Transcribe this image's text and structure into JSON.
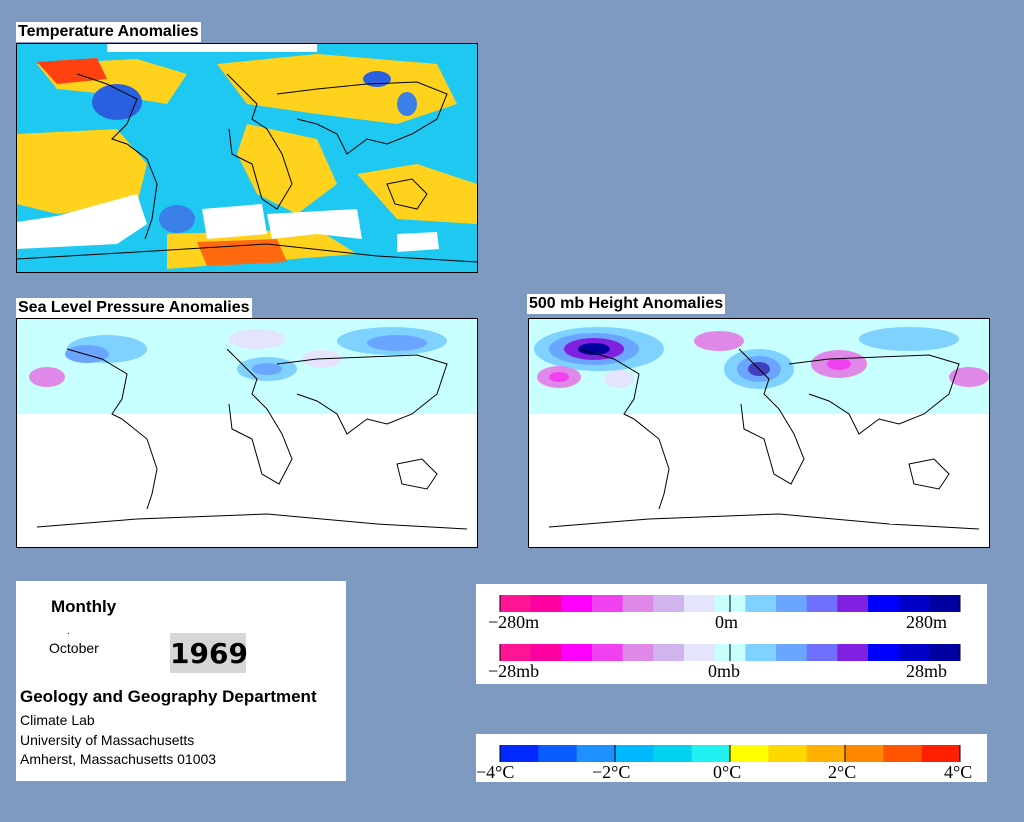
{
  "panels": {
    "temperature": {
      "title": "Temperature Anomalies"
    },
    "slp": {
      "title": "Sea Level Pressure Anomalies"
    },
    "height500": {
      "title": "500 mb Height Anomalies"
    }
  },
  "info": {
    "period": "Monthly",
    "marker": ".",
    "month": "October",
    "year": "1969",
    "department": "Geology and Geography Department",
    "address_lines": [
      "Climate Lab",
      "University of Massachusetts",
      "Amherst, Massachusetts 01003"
    ]
  },
  "legends": {
    "height": {
      "labels": [
        "−280m",
        "0m",
        "280m"
      ],
      "colors": [
        "#ff1493",
        "#ff00a0",
        "#ff00ff",
        "#f040f0",
        "#e088e8",
        "#cfb4ee",
        "#e4e4ff",
        "#c8ffff",
        "#7fd2ff",
        "#6aa6ff",
        "#7070ff",
        "#8020e0",
        "#0000ff",
        "#0000c8",
        "#0000a0"
      ]
    },
    "pressure": {
      "labels": [
        "−28mb",
        "0mb",
        "28mb"
      ],
      "colors": [
        "#ff1493",
        "#ff00a0",
        "#ff00ff",
        "#f040f0",
        "#e088e8",
        "#cfb4ee",
        "#e4e4ff",
        "#c8ffff",
        "#7fd2ff",
        "#6aa6ff",
        "#7070ff",
        "#8020e0",
        "#0000ff",
        "#0000c8",
        "#0000a0"
      ]
    },
    "temperature": {
      "labels": [
        "−4°C",
        "−2°C",
        "0°C",
        "2°C",
        "4°C"
      ],
      "colors": [
        "#0028ff",
        "#0a5cff",
        "#1e90ff",
        "#00b8ff",
        "#00d2f0",
        "#20f0f0",
        "#ffff00",
        "#ffd800",
        "#ffb000",
        "#ff8800",
        "#ff5500",
        "#ff2000"
      ]
    }
  },
  "colors": {
    "background": "#7f9ac0",
    "temp_cool": "#1ec8f0",
    "temp_warm": "#ffd21e",
    "temp_hot": "#ff4010",
    "temp_cold": "#2050e0",
    "anom_band": "#c8ffff",
    "anom_low": "#7070ff",
    "anom_high": "#e088e8"
  }
}
